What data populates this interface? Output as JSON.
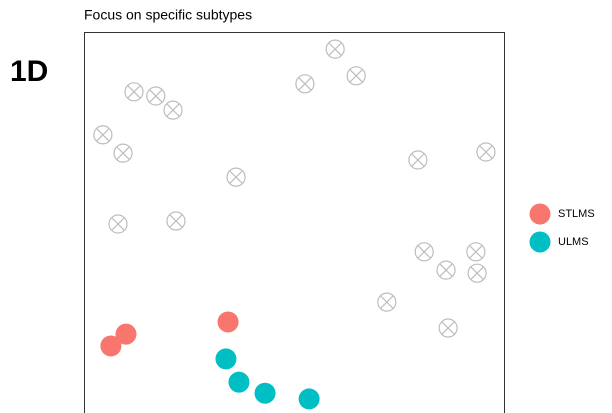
{
  "panel_label": "1D",
  "chart_data": {
    "type": "scatter",
    "title": "Focus on specific subtypes",
    "xlim": [
      0,
      100
    ],
    "ylim": [
      0,
      100
    ],
    "series": [
      {
        "color": "#bdbdbd",
        "marker": "crossed-circle",
        "x": [
          59.8,
          64.8,
          52.6,
          11.9,
          17.1,
          21.2,
          4.5,
          9.3,
          79.5,
          95.7,
          36.2,
          8.1,
          21.9,
          81.0,
          93.3,
          86.2,
          93.6,
          72.1,
          86.7
        ],
        "values": [
          95.5,
          88.5,
          86.4,
          84.3,
          83.2,
          79.5,
          73.0,
          68.2,
          66.4,
          68.5,
          61.9,
          49.6,
          50.4,
          42.3,
          42.3,
          37.5,
          36.7,
          29.1,
          22.3
        ]
      },
      {
        "name": "STLMS",
        "color": "#f8766d",
        "marker": "dot",
        "x": [
          10.0,
          6.4,
          34.3
        ],
        "values": [
          20.7,
          17.6,
          23.9
        ]
      },
      {
        "name": "ULMS",
        "color": "#00bfc4",
        "marker": "dot",
        "x": [
          33.8,
          36.9,
          43.1,
          53.6
        ],
        "values": [
          14.2,
          8.1,
          5.2,
          3.7
        ]
      }
    ]
  }
}
